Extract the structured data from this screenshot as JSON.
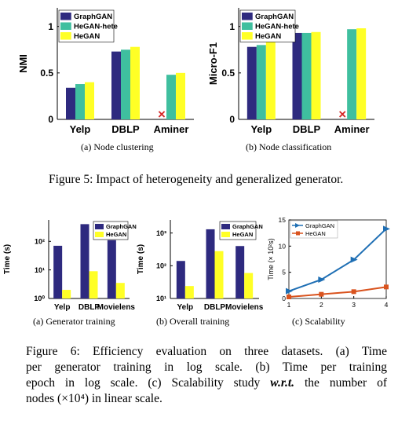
{
  "colors": {
    "graphgan": "#2e2a7f",
    "hegan_hete": "#3fbf9f",
    "hegan": "#ffff26",
    "missing": "#d62828",
    "line_graphgan": "#1f6fb4",
    "line_hegan": "#d9531e"
  },
  "captions": {
    "a5": "(a)  Node clustering",
    "b5": "(b)  Node classification",
    "fig5": "Figure 5: Impact of heterogeneity and generalized generator.",
    "a6": "(a)  Generator training",
    "b6": "(b)  Overall training",
    "c6": "(c)  Scalability",
    "fig6_l1": "Figure 6: Efficiency evaluation on three datasets. (a) Time",
    "fig6_l2": "per generator training in log scale. (b) Time per training",
    "fig6_l3_pre": "epoch in log scale. (c) Scalability study ",
    "fig6_l3_em": "w.r.t.",
    "fig6_l3_post": " the number of",
    "fig6_l4": "nodes (×10⁴) in linear scale."
  },
  "chart_data": [
    {
      "id": "nmi",
      "type": "bar",
      "ylabel": "NMI",
      "ylim": [
        0,
        1.2
      ],
      "yticks": [
        "0",
        "0.5",
        "1"
      ],
      "categories": [
        "Yelp",
        "DBLP",
        "Aminer"
      ],
      "legend": "top-left",
      "series": [
        {
          "name": "GraphGAN",
          "values": [
            0.34,
            0.73,
            null
          ]
        },
        {
          "name": "HeGAN-hete",
          "values": [
            0.38,
            0.75,
            0.48
          ]
        },
        {
          "name": "HeGAN",
          "values": [
            0.4,
            0.78,
            0.5
          ]
        }
      ],
      "missing_marker": "×"
    },
    {
      "id": "microf1",
      "type": "bar",
      "ylabel": "Micro-F1",
      "ylim": [
        0,
        1.2
      ],
      "yticks": [
        "0",
        "0.5",
        "1"
      ],
      "categories": [
        "Yelp",
        "DBLP",
        "Aminer"
      ],
      "legend": "top-left",
      "series": [
        {
          "name": "GraphGAN",
          "values": [
            0.78,
            0.93,
            null
          ]
        },
        {
          "name": "HeGAN-hete",
          "values": [
            0.8,
            0.93,
            0.97
          ]
        },
        {
          "name": "HeGAN",
          "values": [
            0.84,
            0.94,
            0.98
          ]
        }
      ],
      "missing_marker": "×"
    },
    {
      "id": "gen",
      "type": "bar",
      "ylabel": "Time (s)",
      "scale": "log",
      "yticks": [
        "10⁰",
        "10¹",
        "10²"
      ],
      "categories": [
        "Yelp",
        "DBLP",
        "Movielens"
      ],
      "legend": "top-right",
      "series": [
        {
          "name": "GraphGAN",
          "values": [
            70,
            400,
            110
          ]
        },
        {
          "name": "HeGAN",
          "values": [
            2,
            9,
            3.5
          ]
        }
      ]
    },
    {
      "id": "overall",
      "type": "bar",
      "ylabel": "Time (s)",
      "scale": "log",
      "yticks": [
        "10¹",
        "10²",
        "10³"
      ],
      "categories": [
        "Yelp",
        "DBLP",
        "Movielens"
      ],
      "legend": "top-right",
      "series": [
        {
          "name": "GraphGAN",
          "values": [
            140,
            1300,
            400
          ]
        },
        {
          "name": "HeGAN",
          "values": [
            24,
            280,
            60
          ]
        }
      ]
    },
    {
      "id": "scal",
      "type": "line",
      "ylabel": "Time (× 10²s)",
      "xticks": [
        "1",
        "2",
        "3",
        "4"
      ],
      "yticks": [
        "0",
        "5",
        "10",
        "15"
      ],
      "legend": "top-left",
      "series": [
        {
          "name": "GraphGAN",
          "x": [
            1,
            2,
            3,
            4
          ],
          "values": [
            1.4,
            3.6,
            7.4,
            13.3
          ]
        },
        {
          "name": "HeGAN",
          "x": [
            1,
            2,
            3,
            4
          ],
          "values": [
            0.3,
            0.8,
            1.3,
            2.2
          ]
        }
      ]
    }
  ]
}
